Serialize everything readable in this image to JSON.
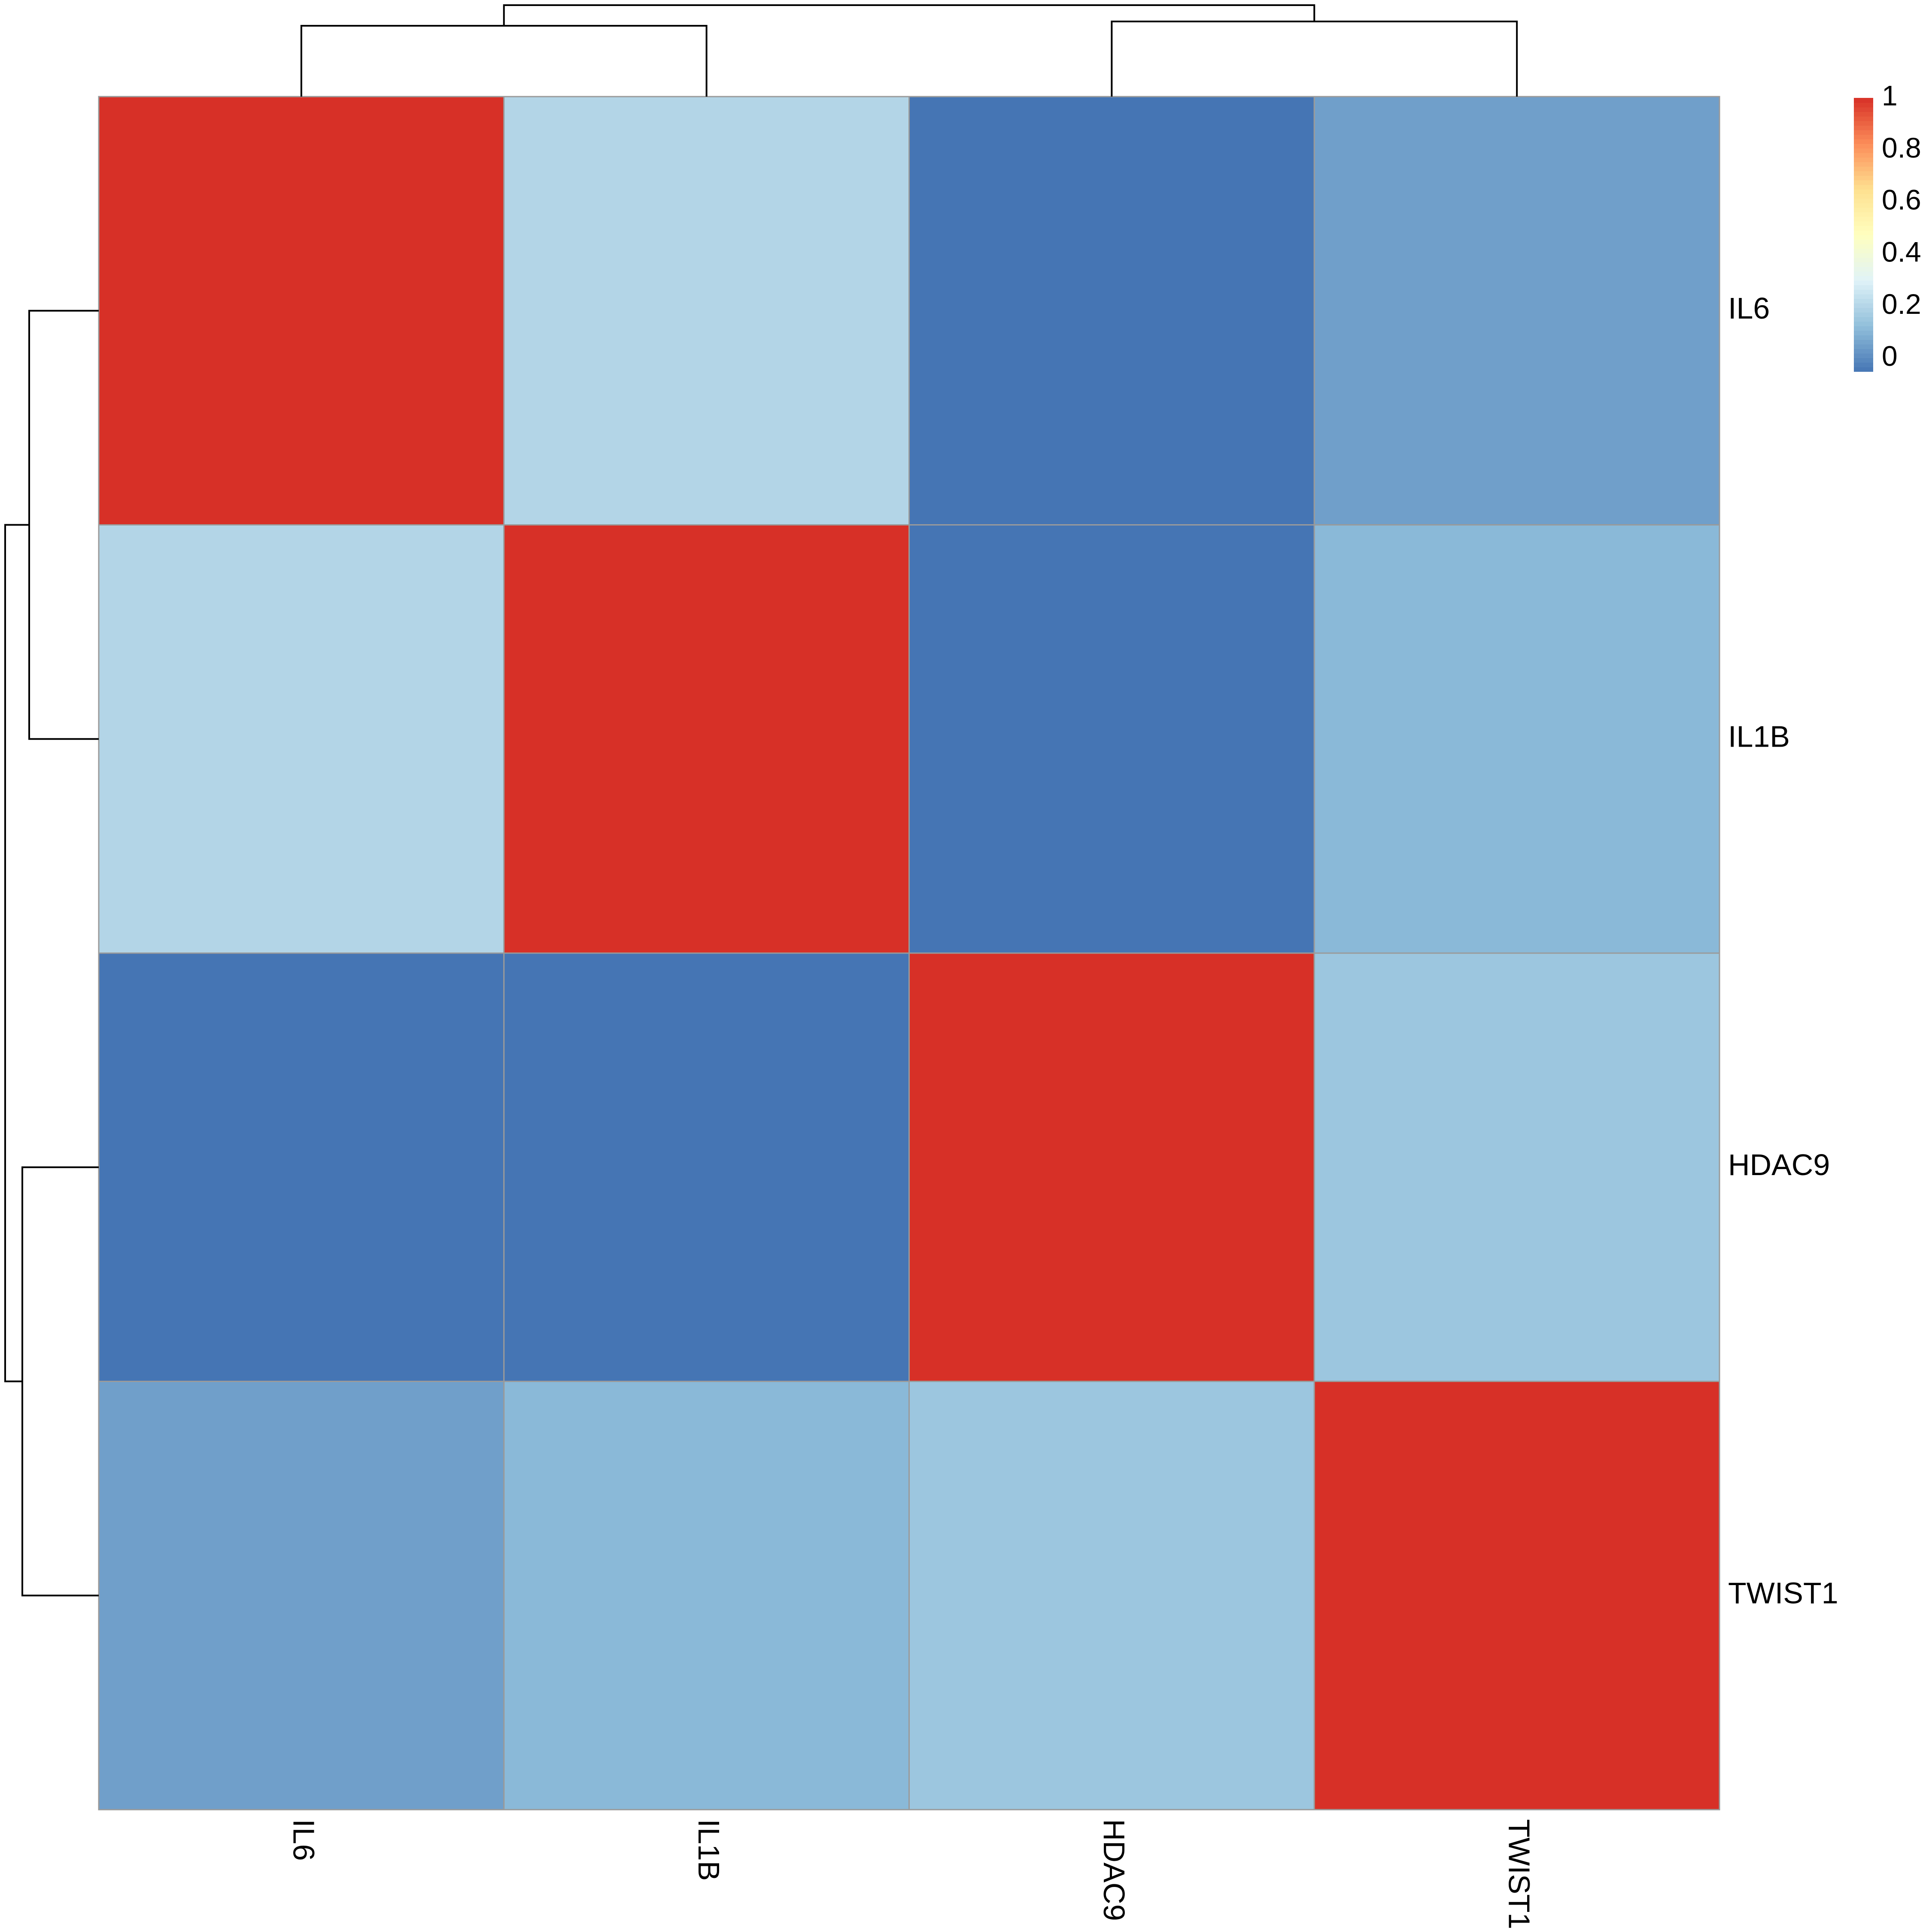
{
  "chart_data": {
    "type": "heatmap",
    "title": "",
    "xlabel": "",
    "ylabel": "",
    "row_labels": [
      "IL6",
      "IL1B",
      "HDAC9",
      "TWIST1"
    ],
    "col_labels": [
      "IL6",
      "IL1B",
      "HDAC9",
      "TWIST1"
    ],
    "values": [
      [
        1.0,
        0.2,
        -0.05,
        0.05
      ],
      [
        0.2,
        1.0,
        -0.05,
        0.11
      ],
      [
        -0.05,
        -0.05,
        1.0,
        0.15
      ],
      [
        0.05,
        0.11,
        0.15,
        1.0
      ]
    ],
    "color_scale": {
      "min": -0.05,
      "max": 1,
      "ticks": [
        0,
        0.2,
        0.4,
        0.6,
        0.8,
        1
      ],
      "tick_labels": [
        "0",
        "0.2",
        "0.4",
        "0.6",
        "0.8",
        "1"
      ],
      "colors": [
        "#4575B4",
        "#91BFDB",
        "#E0F3F8",
        "#FFFFBF",
        "#FEE090",
        "#FC8D59",
        "#D73027"
      ]
    },
    "dendrogram": {
      "rows": true,
      "cols": true,
      "clusters": [
        [
          "IL6",
          "IL1B"
        ],
        [
          "HDAC9",
          "TWIST1"
        ]
      ]
    },
    "legend_position": "top-right",
    "grid": true
  }
}
